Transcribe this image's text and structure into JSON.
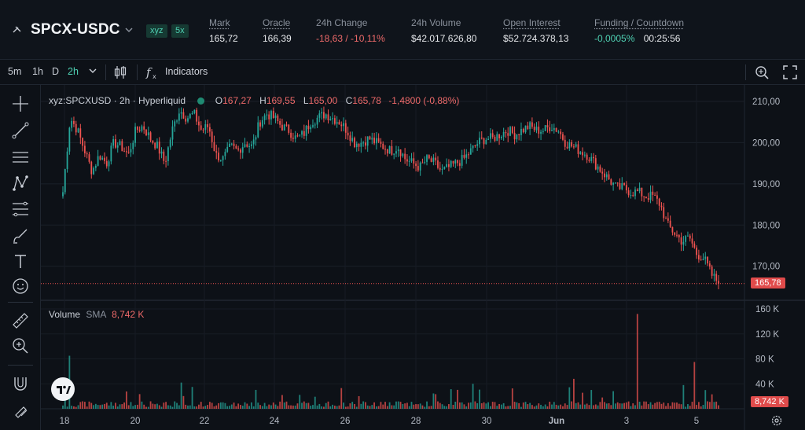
{
  "market": {
    "name": "SPCX-USDC",
    "badges": [
      "xyz",
      "5x"
    ]
  },
  "stats": [
    {
      "label": "Mark",
      "value": "165,72",
      "tone": "normal"
    },
    {
      "label": "Oracle",
      "value": "166,39",
      "tone": "normal"
    },
    {
      "label": "24h Change",
      "value": "-18,63 / -10,11%",
      "tone": "red"
    },
    {
      "label": "24h Volume",
      "value": "$42.017.626,80",
      "tone": "normal"
    },
    {
      "label": "Open Interest",
      "value": "$52.724.378,13",
      "tone": "normal"
    },
    {
      "label": "Funding / Countdown",
      "value": "-0,0005%",
      "value2": "00:25:56",
      "tone": "green"
    }
  ],
  "toolbar": {
    "timeframes": [
      "5m",
      "1h",
      "D",
      "2h"
    ],
    "active_timeframe": "2h",
    "indicators_label": "Indicators"
  },
  "legend": {
    "symbol": "xyz:SPCXUSD · 2h · Hyperliquid",
    "o_label": "O",
    "o": "167,27",
    "h_label": "H",
    "h": "169,55",
    "l_label": "L",
    "l": "165,00",
    "c_label": "C",
    "c": "165,78",
    "change": "-1,4800 (-0,88%)"
  },
  "volume_legend": {
    "label": "Volume",
    "sma_label": "SMA",
    "value": "8,742 K"
  },
  "last_price_tag": "165,78",
  "volume_tag": "8,742 K",
  "colors": {
    "up": "#26a69a",
    "down": "#ef5350",
    "accent": "#4fd1b3",
    "background": "#0d1117"
  },
  "chart_data": {
    "type": "candlestick",
    "price_axis_ticks": [
      "210,00",
      "200,00",
      "190,00",
      "180,00",
      "170,00"
    ],
    "price_axis_values": [
      210,
      200,
      190,
      180,
      170
    ],
    "volume_axis_ticks": [
      "160 K",
      "120 K",
      "80 K",
      "40 K"
    ],
    "volume_axis_values": [
      160,
      120,
      80,
      40
    ],
    "x_ticks": [
      "18",
      "20",
      "22",
      "24",
      "26",
      "28",
      "30",
      "Jun",
      "3",
      "5"
    ],
    "ylim": [
      162.5,
      214
    ],
    "volume_ylim": [
      0,
      160
    ],
    "last_price": 165.78,
    "closes": [
      188,
      206,
      203,
      198,
      193,
      197,
      195,
      200,
      199,
      197,
      203,
      204,
      201,
      199,
      195,
      203,
      208,
      206,
      207,
      203,
      204,
      197,
      196,
      199,
      198,
      200,
      199,
      205,
      207,
      206,
      204,
      203,
      201,
      202,
      205,
      206,
      207,
      206,
      205,
      203,
      200,
      200,
      201,
      200,
      199,
      198,
      199,
      196,
      195,
      194,
      196,
      195,
      193,
      194,
      195,
      196,
      198,
      200,
      201,
      201,
      202,
      203,
      202,
      203,
      204,
      203,
      203,
      204,
      203,
      200,
      199,
      198,
      197,
      195,
      193,
      191,
      189,
      189,
      188,
      188,
      187,
      187,
      185,
      180,
      178,
      176,
      177,
      173,
      172,
      168,
      166
    ]
  }
}
